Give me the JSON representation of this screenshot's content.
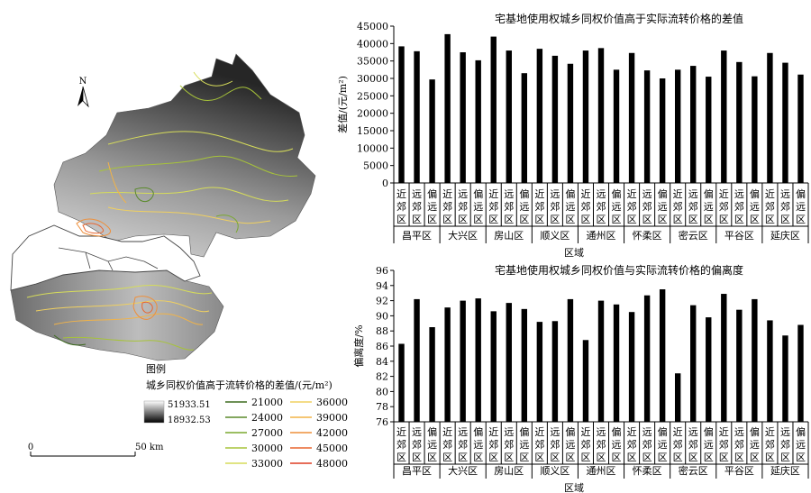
{
  "map": {
    "north_label": "N",
    "legend_title": "图例",
    "legend_subtitle": "城乡同权价值高于流转价格的差值/(元/m²)",
    "gradient_max": "51933.51",
    "gradient_min": "18932.53",
    "contours": [
      {
        "label": "21000",
        "color": "#3d6b1f"
      },
      {
        "label": "24000",
        "color": "#5a8a2a"
      },
      {
        "label": "27000",
        "color": "#7aa82f"
      },
      {
        "label": "30000",
        "color": "#a7c33a"
      },
      {
        "label": "33000",
        "color": "#d6dc5a"
      },
      {
        "label": "36000",
        "color": "#f0d060"
      },
      {
        "label": "39000",
        "color": "#f2b347"
      },
      {
        "label": "42000",
        "color": "#ee8f3a"
      },
      {
        "label": "45000",
        "color": "#e8652e"
      },
      {
        "label": "48000",
        "color": "#dd3d22"
      }
    ],
    "scale_start": "0",
    "scale_end": "50 km"
  },
  "chart_data": [
    {
      "type": "bar",
      "title": "宅基地使用权城乡同权价值高于实际流转价格的差值",
      "ylabel": "差值/(元/m²)",
      "xlabel": "区域",
      "ylim": [
        0,
        45000
      ],
      "yticks": [
        0,
        5000,
        10000,
        15000,
        20000,
        25000,
        30000,
        35000,
        40000,
        45000
      ],
      "groups": [
        "昌平区",
        "大兴区",
        "房山区",
        "顺义区",
        "通州区",
        "怀柔区",
        "密云区",
        "平谷区",
        "延庆区"
      ],
      "subcategories": [
        "近郊区",
        "远郊区",
        "偏远区"
      ],
      "values": [
        [
          39200,
          37800,
          29700
        ],
        [
          42700,
          37500,
          35200
        ],
        [
          42000,
          38000,
          31500
        ],
        [
          38500,
          36500,
          34200
        ],
        [
          38000,
          38700,
          32500
        ],
        [
          37300,
          32300,
          30000
        ],
        [
          32500,
          33600,
          30500
        ],
        [
          38000,
          34700,
          30600
        ],
        [
          37300,
          34500,
          31100
        ]
      ]
    },
    {
      "type": "bar",
      "title": "宅基地使用权城乡同权价值与实际流转价格的偏离度",
      "ylabel": "偏离度/%",
      "xlabel": "区域",
      "ylim": [
        76,
        96
      ],
      "yticks": [
        76,
        78,
        80,
        82,
        84,
        86,
        88,
        90,
        92,
        94,
        96
      ],
      "groups": [
        "昌平区",
        "大兴区",
        "房山区",
        "顺义区",
        "通州区",
        "怀柔区",
        "密云区",
        "平谷区",
        "延庆区"
      ],
      "subcategories": [
        "近郊区",
        "远郊区",
        "偏远区"
      ],
      "values": [
        [
          86.3,
          92.2,
          88.5
        ],
        [
          91.1,
          92.0,
          92.3
        ],
        [
          90.6,
          91.7,
          90.9
        ],
        [
          89.2,
          89.3,
          92.2
        ],
        [
          86.8,
          92.0,
          91.5
        ],
        [
          90.5,
          92.7,
          93.5
        ],
        [
          82.4,
          91.4,
          89.8
        ],
        [
          92.9,
          90.8,
          92.2
        ],
        [
          89.4,
          87.4,
          88.8
        ]
      ]
    }
  ]
}
